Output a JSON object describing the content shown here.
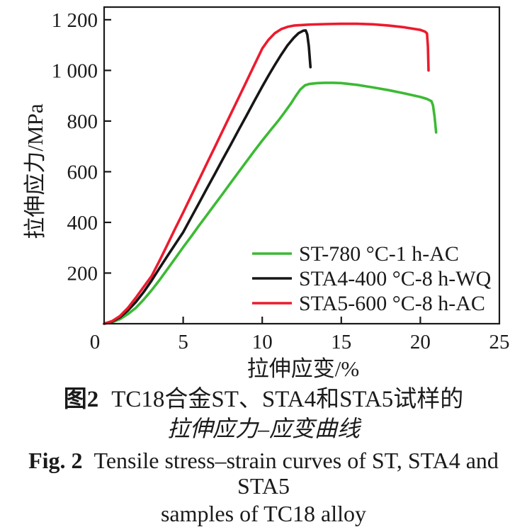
{
  "figure": {
    "caption_zh_label": "图2",
    "caption_zh_line1": "TC18合金ST、STA4和STA5试样的",
    "caption_zh_line2": "拉伸应力–应变曲线",
    "caption_en_label": "Fig. 2",
    "caption_en_line1": "Tensile stress–strain curves of ST, STA4 and STA5",
    "caption_en_line2": "samples of TC18 alloy"
  },
  "chart_data": {
    "type": "line",
    "title": "",
    "xlabel": "拉伸应变/%",
    "ylabel": "拉伸应力/MPa",
    "xlim": [
      0,
      25
    ],
    "ylim": [
      0,
      1250
    ],
    "grid": false,
    "frame_color": "#1a1a1a",
    "legend_position": "inside lower right",
    "xticks": [
      {
        "v": 0,
        "label": "0"
      },
      {
        "v": 5,
        "label": "5"
      },
      {
        "v": 10,
        "label": "10"
      },
      {
        "v": 15,
        "label": "15"
      },
      {
        "v": 20,
        "label": "20"
      },
      {
        "v": 25,
        "label": "25"
      }
    ],
    "yticks": [
      {
        "v": 200,
        "label": "200"
      },
      {
        "v": 400,
        "label": "400"
      },
      {
        "v": 600,
        "label": "600"
      },
      {
        "v": 800,
        "label": "800"
      },
      {
        "v": 1000,
        "label": "1 000"
      },
      {
        "v": 1200,
        "label": "1 200"
      }
    ],
    "series": [
      {
        "id": "st-780c-1h-ac",
        "name": "ST-780 °C-1 h-AC",
        "color": "#3cba34",
        "points": [
          [
            0,
            0
          ],
          [
            0.5,
            6
          ],
          [
            1,
            18
          ],
          [
            1.5,
            38
          ],
          [
            2,
            62
          ],
          [
            2.5,
            95
          ],
          [
            3,
            132
          ],
          [
            3.5,
            172
          ],
          [
            4,
            215
          ],
          [
            4.5,
            258
          ],
          [
            5,
            302
          ],
          [
            5.5,
            344
          ],
          [
            6,
            387
          ],
          [
            6.5,
            429
          ],
          [
            7,
            471
          ],
          [
            7.5,
            513
          ],
          [
            8,
            556
          ],
          [
            8.5,
            598
          ],
          [
            9,
            640
          ],
          [
            9.5,
            682
          ],
          [
            10,
            723
          ],
          [
            10.5,
            762
          ],
          [
            11,
            800
          ],
          [
            11.4,
            833
          ],
          [
            11.8,
            868
          ],
          [
            12.1,
            897
          ],
          [
            12.4,
            924
          ],
          [
            12.7,
            941
          ],
          [
            13,
            947
          ],
          [
            13.5,
            950
          ],
          [
            14,
            951
          ],
          [
            14.5,
            951
          ],
          [
            15,
            950
          ],
          [
            16,
            943
          ],
          [
            17,
            933
          ],
          [
            18,
            922
          ],
          [
            19,
            909
          ],
          [
            20,
            895
          ],
          [
            20.4,
            888
          ],
          [
            20.7,
            879
          ],
          [
            20.8,
            862
          ],
          [
            20.9,
            818
          ],
          [
            21,
            755
          ]
        ]
      },
      {
        "id": "sta4-400c-8h-wq",
        "name": "STA4-400 °C-8 h-WQ",
        "color": "#161616",
        "points": [
          [
            0,
            0
          ],
          [
            0.5,
            8
          ],
          [
            1,
            25
          ],
          [
            1.5,
            52
          ],
          [
            2,
            85
          ],
          [
            2.5,
            125
          ],
          [
            3,
            170
          ],
          [
            3.5,
            219
          ],
          [
            4,
            267
          ],
          [
            4.5,
            314
          ],
          [
            5,
            361
          ],
          [
            5.5,
            419
          ],
          [
            6,
            476
          ],
          [
            6.5,
            534
          ],
          [
            7,
            591
          ],
          [
            7.5,
            649
          ],
          [
            8,
            706
          ],
          [
            8.5,
            764
          ],
          [
            9,
            821
          ],
          [
            9.5,
            879
          ],
          [
            10,
            936
          ],
          [
            10.4,
            980
          ],
          [
            10.8,
            1022
          ],
          [
            11.2,
            1062
          ],
          [
            11.6,
            1099
          ],
          [
            12,
            1129
          ],
          [
            12.3,
            1147
          ],
          [
            12.6,
            1157
          ],
          [
            12.75,
            1158
          ],
          [
            12.85,
            1142
          ],
          [
            12.95,
            1095
          ],
          [
            13.05,
            1013
          ]
        ]
      },
      {
        "id": "sta5-600c-8h-ac",
        "name": "STA5-600 °C-8 h-AC",
        "color": "#ec1b2e",
        "points": [
          [
            0,
            0
          ],
          [
            0.5,
            10
          ],
          [
            1,
            30
          ],
          [
            1.5,
            62
          ],
          [
            2,
            102
          ],
          [
            2.5,
            145
          ],
          [
            3,
            188
          ],
          [
            3.5,
            248
          ],
          [
            4,
            312
          ],
          [
            4.5,
            376
          ],
          [
            5,
            439
          ],
          [
            5.5,
            504
          ],
          [
            6,
            568
          ],
          [
            6.5,
            633
          ],
          [
            7,
            697
          ],
          [
            7.5,
            762
          ],
          [
            8,
            827
          ],
          [
            8.5,
            891
          ],
          [
            9,
            956
          ],
          [
            9.5,
            1021
          ],
          [
            10,
            1086
          ],
          [
            10.4,
            1121
          ],
          [
            10.8,
            1147
          ],
          [
            11.2,
            1163
          ],
          [
            11.6,
            1172
          ],
          [
            12,
            1177
          ],
          [
            13,
            1181
          ],
          [
            14,
            1183
          ],
          [
            15,
            1184
          ],
          [
            16,
            1184
          ],
          [
            17,
            1182
          ],
          [
            18,
            1177
          ],
          [
            19,
            1170
          ],
          [
            20,
            1160
          ],
          [
            20.3,
            1153
          ],
          [
            20.42,
            1146
          ],
          [
            20.48,
            1095
          ],
          [
            20.52,
            1000
          ]
        ]
      }
    ]
  }
}
